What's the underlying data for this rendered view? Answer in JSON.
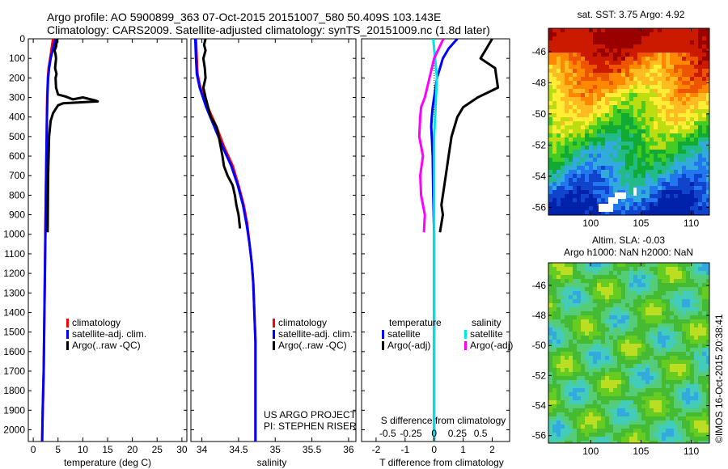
{
  "header": {
    "line1": "Argo profile: AO 5900899_363 07-Oct-2015 20151007_580 50.409S 103.143E",
    "line2": "Climatology: CARS2009. Satellite-adjusted climatology: synTS_20151009.nc (1.8d later)"
  },
  "credit": {
    "project": "US ARGO PROJECT",
    "pi": "PI: STEPHEN RISER",
    "stamp": "©IMOS 16-Oct-2015 20:38:41"
  },
  "colors": {
    "climatology": "#ff0000",
    "satellite": "#0000ff",
    "argo": "#000000",
    "sal_satellite": "#00e5e5",
    "sal_argo": "#ff00ff"
  },
  "depth_ticks": [
    0,
    100,
    200,
    300,
    400,
    500,
    600,
    700,
    800,
    900,
    1000,
    1100,
    1200,
    1300,
    1400,
    1500,
    1600,
    1700,
    1800,
    1900,
    2000
  ],
  "chart_data": [
    {
      "type": "line",
      "id": "temperature",
      "xlabel": "temperature (deg C)",
      "ylabel": "",
      "xlim": [
        -1,
        31
      ],
      "ylim": [
        2060,
        0
      ],
      "xticks": [
        0,
        5,
        10,
        15,
        20,
        25,
        30
      ],
      "legend": [
        "climatology",
        "satellite-adj. clim.",
        "Argo(..raw -QC)"
      ],
      "series": [
        {
          "name": "climatology",
          "color": "#ff0000",
          "x": [
            4.0,
            3.7,
            3.4,
            3.1,
            2.95,
            2.8,
            2.75,
            2.7,
            2.6,
            2.5,
            2.4,
            2.3,
            2.2,
            2.1,
            2.0,
            1.9,
            1.8
          ],
          "y": [
            0,
            50,
            100,
            150,
            200,
            300,
            400,
            500,
            700,
            900,
            1100,
            1300,
            1500,
            1700,
            1800,
            1900,
            2060
          ]
        },
        {
          "name": "satellite-adj. clim.",
          "color": "#0000ff",
          "x": [
            4.5,
            4.0,
            3.5,
            3.2,
            3.0,
            2.85,
            2.75,
            2.7,
            2.6,
            2.5,
            2.4,
            2.3,
            2.2,
            2.1,
            2.0,
            1.9,
            1.8
          ],
          "y": [
            0,
            50,
            100,
            150,
            200,
            300,
            400,
            500,
            700,
            900,
            1100,
            1300,
            1500,
            1700,
            1800,
            1900,
            2060
          ]
        },
        {
          "name": "Argo(..raw -QC)",
          "color": "#000000",
          "x": [
            4.8,
            4.6,
            4.3,
            4.5,
            4.6,
            4.4,
            4.7,
            4.5,
            4.6,
            5.0,
            6.5,
            8.0,
            10.0,
            12.5,
            13.0,
            6.0,
            5.0,
            4.5,
            4.0,
            3.5,
            3.2,
            3.0,
            2.9
          ],
          "y": [
            0,
            40,
            60,
            80,
            100,
            150,
            180,
            200,
            250,
            285,
            295,
            310,
            300,
            315,
            320,
            330,
            340,
            360,
            380,
            420,
            500,
            700,
            990
          ]
        }
      ]
    },
    {
      "type": "line",
      "id": "salinity",
      "xlabel": "salinity",
      "ylabel": "",
      "xlim": [
        33.85,
        36.1
      ],
      "ylim": [
        2060,
        0
      ],
      "xticks": [
        34,
        34.5,
        35,
        35.5,
        36
      ],
      "legend": [
        "climatology",
        "satellite-adj. clim.",
        "Argo(..raw -QC)"
      ],
      "series": [
        {
          "name": "climatology",
          "color": "#ff0000",
          "x": [
            33.92,
            33.93,
            33.94,
            33.98,
            34.08,
            34.2,
            34.3,
            34.42,
            34.5,
            34.57,
            34.62,
            34.65,
            34.68,
            34.7,
            34.71,
            34.72,
            34.73,
            34.73,
            34.73
          ],
          "y": [
            0,
            100,
            180,
            250,
            350,
            450,
            550,
            650,
            750,
            850,
            950,
            1050,
            1150,
            1250,
            1350,
            1450,
            1550,
            1800,
            2060
          ]
        },
        {
          "name": "satellite-adj. clim.",
          "color": "#0000ff",
          "x": [
            33.91,
            33.92,
            33.93,
            33.97,
            34.06,
            34.17,
            34.28,
            34.4,
            34.49,
            34.56,
            34.61,
            34.65,
            34.68,
            34.7,
            34.71,
            34.72,
            34.73,
            34.73,
            34.73
          ],
          "y": [
            0,
            100,
            180,
            250,
            350,
            450,
            550,
            650,
            750,
            850,
            950,
            1050,
            1150,
            1250,
            1350,
            1450,
            1550,
            1800,
            2060
          ]
        },
        {
          "name": "Argo(..raw -QC)",
          "color": "#000000",
          "x": [
            34.05,
            34.03,
            34.05,
            34.02,
            34.04,
            34.05,
            34.02,
            34.05,
            34.12,
            34.2,
            34.23,
            34.28,
            34.3,
            34.35,
            34.42,
            34.45,
            34.47,
            34.5,
            34.52
          ],
          "y": [
            0,
            30,
            60,
            100,
            150,
            200,
            250,
            300,
            400,
            450,
            500,
            600,
            650,
            700,
            750,
            800,
            850,
            900,
            970
          ]
        }
      ]
    },
    {
      "type": "line",
      "id": "difference",
      "xlabel": "T difference from climatology",
      "xlabel2": "S difference from climatology",
      "ylabel": "",
      "xlim": [
        -2.5,
        2.6
      ],
      "ylim": [
        2060,
        0
      ],
      "xticks": [
        -2,
        -1,
        0,
        1,
        2
      ],
      "xticks2": [
        -0.5,
        -0.25,
        0,
        0.25,
        0.5
      ],
      "legend_groups": [
        {
          "title": "temperature",
          "items": [
            "satellite",
            "Argo(-adj)"
          ]
        },
        {
          "title": "salinity",
          "items": [
            "satellite",
            "Argo(-adj)"
          ]
        }
      ],
      "zero_line": 0,
      "series": [
        {
          "name": "satellite",
          "group": "temperature",
          "color": "#0000ff",
          "x": [
            0.8,
            0.5,
            0.3,
            0.2,
            0.1,
            0.05,
            0.0,
            -0.05,
            -0.08,
            -0.1,
            -0.08,
            -0.05,
            -0.03,
            0,
            0
          ],
          "y": [
            0,
            50,
            100,
            150,
            200,
            250,
            300,
            350,
            400,
            450,
            500,
            600,
            800,
            1000,
            2060
          ]
        },
        {
          "name": "Argo(-adj)",
          "group": "temperature",
          "color": "#000000",
          "x": [
            2.0,
            1.8,
            1.6,
            2.1,
            2.2,
            1.5,
            1.0,
            0.8,
            0.7,
            0.6,
            0.5,
            0.4,
            0.35,
            0.3,
            0.25,
            0.3,
            0.2
          ],
          "y": [
            0,
            50,
            100,
            150,
            250,
            300,
            350,
            400,
            450,
            500,
            600,
            700,
            750,
            800,
            850,
            900,
            990
          ]
        },
        {
          "name": "satellite",
          "group": "salinity",
          "color": "#00e5e5",
          "x": [
            -0.01,
            0.0,
            0.01,
            0.03,
            0.02,
            0.01,
            0.0,
            0,
            0
          ],
          "y": [
            0,
            50,
            100,
            200,
            300,
            400,
            500,
            800,
            2060
          ]
        },
        {
          "name": "Argo(-adj)",
          "group": "salinity",
          "color": "#ff00ff",
          "x": [
            0.1,
            0.05,
            0.0,
            -0.05,
            -0.1,
            -0.14,
            -0.15,
            -0.16,
            -0.12,
            -0.15,
            -0.14,
            -0.1,
            -0.11
          ],
          "y": [
            0,
            50,
            100,
            200,
            300,
            350,
            400,
            500,
            600,
            700,
            800,
            900,
            990
          ]
        }
      ]
    },
    {
      "type": "heatmap",
      "id": "sst_map",
      "title": "sat. SST: 3.75 Argo: 4.92",
      "xticks": [
        100,
        105,
        110
      ],
      "yticks": [
        -46,
        -48,
        -50,
        -52,
        -54,
        -56
      ],
      "xlim": [
        95.8,
        111.8
      ],
      "ylim": [
        -56.5,
        -44.5
      ]
    },
    {
      "type": "heatmap",
      "id": "sla_map",
      "title": "Altim. SLA: -0.03",
      "title2": "Argo h1000: NaN h2000: NaN",
      "xticks": [
        100,
        105,
        110
      ],
      "yticks": [
        -46,
        -48,
        -50,
        -52,
        -54,
        -56
      ],
      "xlim": [
        95.8,
        111.8
      ],
      "ylim": [
        -56.5,
        -44.5
      ]
    }
  ]
}
